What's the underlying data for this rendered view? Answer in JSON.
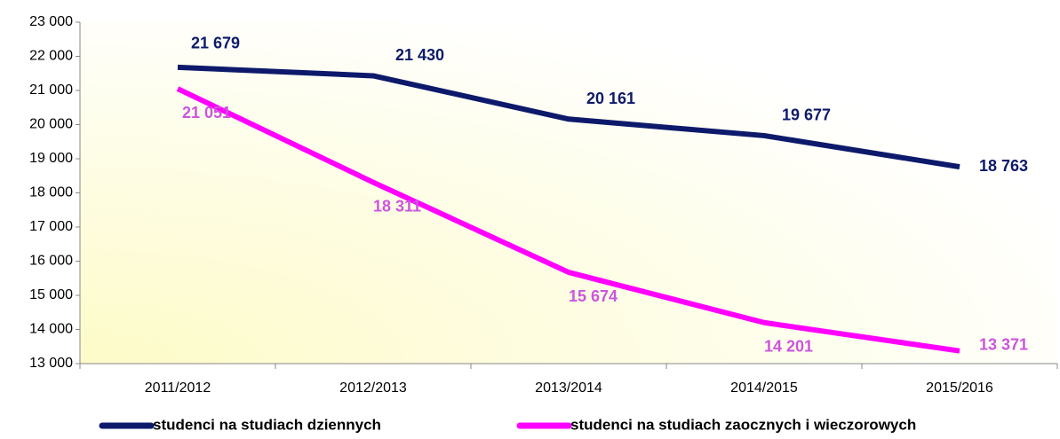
{
  "chart_data": {
    "type": "line",
    "categories": [
      "2011/2012",
      "2012/2013",
      "2013/2014",
      "2014/2015",
      "2015/2016"
    ],
    "series": [
      {
        "name": "studenci na studiach dziennych",
        "color": "#0d1a6b",
        "values": [
          21679,
          21430,
          20161,
          19677,
          18763
        ],
        "value_labels": [
          "21 679",
          "21 430",
          "20 161",
          "19 677",
          "18 763"
        ]
      },
      {
        "name": "studenci na studiach zaocznych i wieczorowych",
        "color": "#ff00ff",
        "label_color": "#cc55dd",
        "values": [
          21051,
          18311,
          15674,
          14201,
          13371
        ],
        "value_labels": [
          "21 051",
          "18 311",
          "15 674",
          "14 201",
          "13 371"
        ]
      }
    ],
    "ylim": [
      13000,
      23000
    ],
    "yticks": [
      {
        "value": 13000,
        "label": "13 000"
      },
      {
        "value": 14000,
        "label": "14 000"
      },
      {
        "value": 15000,
        "label": "15 000"
      },
      {
        "value": 16000,
        "label": "16 000"
      },
      {
        "value": 17000,
        "label": "17 000"
      },
      {
        "value": 18000,
        "label": "18 000"
      },
      {
        "value": 19000,
        "label": "19 000"
      },
      {
        "value": 20000,
        "label": "20 000"
      },
      {
        "value": 21000,
        "label": "21 000"
      },
      {
        "value": 22000,
        "label": "22 000"
      },
      {
        "value": 23000,
        "label": "23 000"
      }
    ],
    "legend": "bottom"
  }
}
